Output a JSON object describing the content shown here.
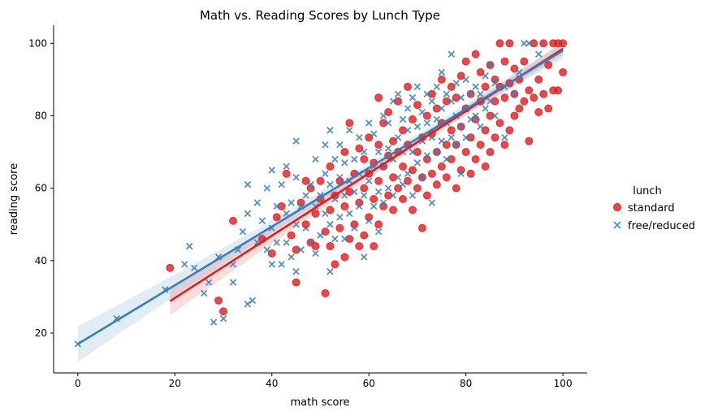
{
  "chart_data": {
    "type": "scatter",
    "title": "Math vs. Reading Scores by Lunch Type",
    "xlabel": "math score",
    "ylabel": "reading score",
    "xlim": [
      -5,
      105
    ],
    "ylim": [
      9,
      105
    ],
    "xticks": [
      0,
      20,
      40,
      60,
      80,
      100
    ],
    "yticks": [
      20,
      40,
      60,
      80,
      100
    ],
    "grid": false,
    "legend": {
      "title": "lunch",
      "placement": "right"
    },
    "series": [
      {
        "name": "standard",
        "marker": "circle",
        "color": "#e41a1c",
        "regression": {
          "x_range": [
            19,
            100
          ],
          "intercept": 12.5,
          "slope": 0.86
        },
        "points": [
          [
            19,
            38
          ],
          [
            29,
            29
          ],
          [
            30,
            26
          ],
          [
            32,
            51
          ],
          [
            38,
            46
          ],
          [
            40,
            42
          ],
          [
            41,
            52
          ],
          [
            42,
            55
          ],
          [
            43,
            64
          ],
          [
            44,
            47
          ],
          [
            45,
            34
          ],
          [
            45,
            43
          ],
          [
            46,
            56
          ],
          [
            47,
            50
          ],
          [
            47,
            62
          ],
          [
            48,
            45
          ],
          [
            48,
            60
          ],
          [
            49,
            44
          ],
          [
            49,
            53
          ],
          [
            50,
            57
          ],
          [
            50,
            62
          ],
          [
            51,
            31
          ],
          [
            51,
            48
          ],
          [
            52,
            44
          ],
          [
            52,
            54
          ],
          [
            52,
            66
          ],
          [
            53,
            39
          ],
          [
            53,
            58
          ],
          [
            54,
            49
          ],
          [
            54,
            62
          ],
          [
            55,
            41
          ],
          [
            55,
            55
          ],
          [
            55,
            70
          ],
          [
            56,
            46
          ],
          [
            56,
            59
          ],
          [
            56,
            78
          ],
          [
            57,
            50
          ],
          [
            57,
            64
          ],
          [
            58,
            44
          ],
          [
            58,
            56
          ],
          [
            58,
            71
          ],
          [
            59,
            47
          ],
          [
            59,
            60
          ],
          [
            59,
            68
          ],
          [
            60,
            52
          ],
          [
            60,
            64
          ],
          [
            60,
            74
          ],
          [
            61,
            44
          ],
          [
            61,
            57
          ],
          [
            61,
            67
          ],
          [
            62,
            50
          ],
          [
            62,
            62
          ],
          [
            62,
            72
          ],
          [
            62,
            85
          ],
          [
            63,
            55
          ],
          [
            63,
            66
          ],
          [
            63,
            78
          ],
          [
            64,
            58
          ],
          [
            64,
            69
          ],
          [
            64,
            81
          ],
          [
            65,
            54
          ],
          [
            65,
            63
          ],
          [
            65,
            73
          ],
          [
            66,
            60
          ],
          [
            66,
            70
          ],
          [
            66,
            84
          ],
          [
            67,
            57
          ],
          [
            67,
            66
          ],
          [
            67,
            76
          ],
          [
            68,
            62
          ],
          [
            68,
            72
          ],
          [
            68,
            88
          ],
          [
            69,
            54
          ],
          [
            69,
            65
          ],
          [
            69,
            79
          ],
          [
            70,
            60
          ],
          [
            70,
            70
          ],
          [
            70,
            83
          ],
          [
            71,
            49
          ],
          [
            71,
            63
          ],
          [
            71,
            74
          ],
          [
            72,
            58
          ],
          [
            72,
            68
          ],
          [
            72,
            80
          ],
          [
            73,
            64
          ],
          [
            73,
            75
          ],
          [
            73,
            86
          ],
          [
            74,
            61
          ],
          [
            74,
            70
          ],
          [
            74,
            82
          ],
          [
            75,
            66
          ],
          [
            75,
            78
          ],
          [
            75,
            90
          ],
          [
            76,
            63
          ],
          [
            76,
            72
          ],
          [
            76,
            84
          ],
          [
            77,
            68
          ],
          [
            77,
            76
          ],
          [
            77,
            88
          ],
          [
            78,
            60
          ],
          [
            78,
            72
          ],
          [
            78,
            85
          ],
          [
            79,
            65
          ],
          [
            79,
            77
          ],
          [
            79,
            91
          ],
          [
            80,
            70
          ],
          [
            80,
            82
          ],
          [
            80,
            95
          ],
          [
            81,
            64
          ],
          [
            81,
            74
          ],
          [
            81,
            86
          ],
          [
            82,
            68
          ],
          [
            82,
            79
          ],
          [
            82,
            97
          ],
          [
            83,
            72
          ],
          [
            83,
            84
          ],
          [
            83,
            92
          ],
          [
            84,
            66
          ],
          [
            84,
            76
          ],
          [
            84,
            88
          ],
          [
            85,
            70
          ],
          [
            85,
            80
          ],
          [
            85,
            94
          ],
          [
            86,
            74
          ],
          [
            86,
            84
          ],
          [
            86,
            90
          ],
          [
            87,
            78
          ],
          [
            87,
            88
          ],
          [
            87,
            100
          ],
          [
            88,
            72
          ],
          [
            88,
            85
          ],
          [
            88,
            95
          ],
          [
            89,
            76
          ],
          [
            89,
            89
          ],
          [
            89,
            100
          ],
          [
            90,
            80
          ],
          [
            90,
            86
          ],
          [
            90,
            93
          ],
          [
            91,
            82
          ],
          [
            91,
            90
          ],
          [
            92,
            84
          ],
          [
            92,
            95
          ],
          [
            93,
            73
          ],
          [
            93,
            87
          ],
          [
            94,
            85
          ],
          [
            94,
            100
          ],
          [
            95,
            81
          ],
          [
            95,
            90
          ],
          [
            96,
            86
          ],
          [
            96,
            100
          ],
          [
            97,
            82
          ],
          [
            97,
            94
          ],
          [
            98,
            87
          ],
          [
            98,
            100
          ],
          [
            99,
            87
          ],
          [
            99,
            100
          ],
          [
            100,
            92
          ],
          [
            100,
            100
          ]
        ]
      },
      {
        "name": "free/reduced",
        "marker": "x",
        "color": "#377eb8",
        "regression": {
          "x_range": [
            0,
            100
          ],
          "intercept": 17,
          "slope": 0.81
        },
        "points": [
          [
            0,
            17
          ],
          [
            8,
            24
          ],
          [
            18,
            32
          ],
          [
            22,
            39
          ],
          [
            23,
            44
          ],
          [
            24,
            38
          ],
          [
            26,
            31
          ],
          [
            27,
            34
          ],
          [
            28,
            23
          ],
          [
            29,
            41
          ],
          [
            30,
            24
          ],
          [
            32,
            34
          ],
          [
            32,
            39
          ],
          [
            33,
            43
          ],
          [
            34,
            48
          ],
          [
            35,
            28
          ],
          [
            35,
            53
          ],
          [
            35,
            61
          ],
          [
            36,
            29
          ],
          [
            37,
            45
          ],
          [
            37,
            56
          ],
          [
            38,
            51
          ],
          [
            39,
            43
          ],
          [
            39,
            60
          ],
          [
            40,
            39
          ],
          [
            40,
            49
          ],
          [
            40,
            65
          ],
          [
            41,
            45
          ],
          [
            41,
            55
          ],
          [
            42,
            39
          ],
          [
            42,
            61
          ],
          [
            43,
            45
          ],
          [
            43,
            53
          ],
          [
            43,
            66
          ],
          [
            44,
            41
          ],
          [
            44,
            56
          ],
          [
            45,
            37
          ],
          [
            45,
            50
          ],
          [
            45,
            63
          ],
          [
            45,
            73
          ],
          [
            46,
            43
          ],
          [
            46,
            55
          ],
          [
            47,
            49
          ],
          [
            47,
            58
          ],
          [
            48,
            45
          ],
          [
            48,
            61
          ],
          [
            49,
            42
          ],
          [
            49,
            55
          ],
          [
            49,
            68
          ],
          [
            50,
            47
          ],
          [
            50,
            58
          ],
          [
            51,
            53
          ],
          [
            51,
            64
          ],
          [
            51,
            72
          ],
          [
            52,
            37
          ],
          [
            52,
            50
          ],
          [
            52,
            61
          ],
          [
            52,
            76
          ],
          [
            53,
            46
          ],
          [
            53,
            57
          ],
          [
            53,
            68
          ],
          [
            54,
            52
          ],
          [
            54,
            63
          ],
          [
            54,
            72
          ],
          [
            55,
            46
          ],
          [
            55,
            58
          ],
          [
            55,
            67
          ],
          [
            56,
            53
          ],
          [
            56,
            62
          ],
          [
            56,
            76
          ],
          [
            57,
            49
          ],
          [
            57,
            59
          ],
          [
            57,
            68
          ],
          [
            58,
            55
          ],
          [
            58,
            64
          ],
          [
            58,
            74
          ],
          [
            59,
            41
          ],
          [
            59,
            58
          ],
          [
            59,
            70
          ],
          [
            60,
            51
          ],
          [
            60,
            62
          ],
          [
            60,
            78
          ],
          [
            61,
            55
          ],
          [
            61,
            66
          ],
          [
            61,
            75
          ],
          [
            62,
            48
          ],
          [
            62,
            59
          ],
          [
            62,
            70
          ],
          [
            63,
            56
          ],
          [
            63,
            66
          ],
          [
            63,
            80
          ],
          [
            64,
            60
          ],
          [
            64,
            71
          ],
          [
            64,
            78
          ],
          [
            65,
            58
          ],
          [
            65,
            68
          ],
          [
            65,
            84
          ],
          [
            66,
            63
          ],
          [
            66,
            74
          ],
          [
            66,
            86
          ],
          [
            67,
            61
          ],
          [
            67,
            70
          ],
          [
            67,
            79
          ],
          [
            68,
            64
          ],
          [
            68,
            76
          ],
          [
            68,
            82
          ],
          [
            69,
            58
          ],
          [
            69,
            70
          ],
          [
            69,
            85
          ],
          [
            70,
            67
          ],
          [
            70,
            77
          ],
          [
            70,
            88
          ],
          [
            71,
            63
          ],
          [
            71,
            73
          ],
          [
            71,
            81
          ],
          [
            72,
            69
          ],
          [
            72,
            78
          ],
          [
            72,
            86
          ],
          [
            73,
            56
          ],
          [
            73,
            74
          ],
          [
            73,
            84
          ],
          [
            74,
            70
          ],
          [
            74,
            79
          ],
          [
            74,
            88
          ],
          [
            75,
            73
          ],
          [
            75,
            82
          ],
          [
            75,
            92
          ],
          [
            76,
            68
          ],
          [
            76,
            78
          ],
          [
            76,
            86
          ],
          [
            77,
            74
          ],
          [
            77,
            84
          ],
          [
            77,
            97
          ],
          [
            78,
            72
          ],
          [
            78,
            80
          ],
          [
            78,
            89
          ],
          [
            79,
            64
          ],
          [
            79,
            77
          ],
          [
            79,
            85
          ],
          [
            80,
            74
          ],
          [
            80,
            82
          ],
          [
            80,
            90
          ],
          [
            81,
            79
          ],
          [
            81,
            86
          ],
          [
            82,
            80
          ],
          [
            82,
            88
          ],
          [
            83,
            77
          ],
          [
            83,
            86
          ],
          [
            84,
            82
          ],
          [
            84,
            91
          ],
          [
            85,
            84
          ],
          [
            85,
            94
          ],
          [
            86,
            80
          ],
          [
            86,
            89
          ],
          [
            88,
            74
          ],
          [
            88,
            88
          ],
          [
            90,
            86
          ],
          [
            91,
            92
          ],
          [
            92,
            100
          ],
          [
            93,
            100
          ],
          [
            95,
            97
          ]
        ]
      }
    ]
  }
}
